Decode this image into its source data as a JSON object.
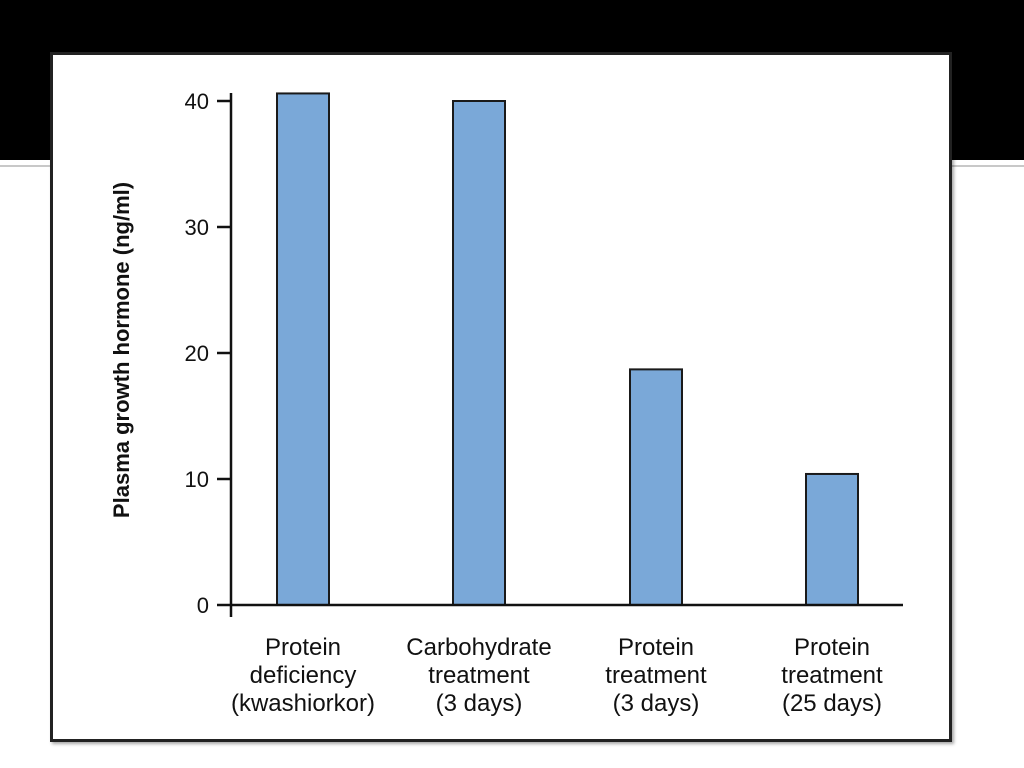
{
  "colors": {
    "bar_fill": "#7aa8d8",
    "bar_stroke": "#1a1a1a",
    "band": "#000000",
    "background": "#ffffff"
  },
  "chart_data": {
    "type": "bar",
    "categories": [
      [
        "Protein",
        "deficiency",
        "(kwashiorkor)"
      ],
      [
        "Carbohydrate",
        "treatment",
        "(3 days)"
      ],
      [
        "Protein",
        "treatment",
        "(3 days)"
      ],
      [
        "Protein",
        "treatment",
        "(25 days)"
      ]
    ],
    "values": [
      40.6,
      40.0,
      18.7,
      10.4
    ],
    "title": "",
    "xlabel": "",
    "ylabel": "Plasma growth hormone (ng/ml)",
    "ylim": [
      0,
      40
    ],
    "yticks": [
      0,
      10,
      20,
      30,
      40
    ],
    "grid": false,
    "legend": "none"
  }
}
